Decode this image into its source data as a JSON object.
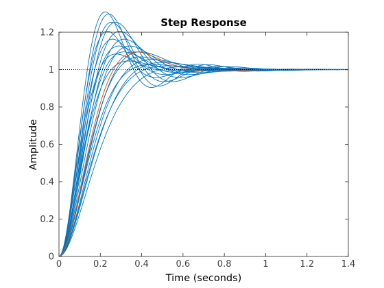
{
  "chart_data": {
    "type": "line",
    "title": "Step Response",
    "xlabel": "Time (seconds)",
    "ylabel": "Amplitude",
    "xlim": [
      0,
      1.4
    ],
    "ylim": [
      0,
      1.2
    ],
    "x_ticks": [
      0,
      0.2,
      0.4,
      0.6,
      0.8,
      1,
      1.2,
      1.4
    ],
    "y_ticks": [
      0,
      0.2,
      0.4,
      0.6,
      0.8,
      1,
      1.2
    ],
    "x_tick_labels": [
      "0",
      "0.2",
      "0.4",
      "0.6",
      "0.8",
      "1",
      "1.2",
      "1.4"
    ],
    "y_tick_labels": [
      "0",
      "0.2",
      "0.4",
      "0.6",
      "0.8",
      "1",
      "1.2"
    ],
    "grid": false,
    "reference_line": {
      "y": 1,
      "style": "dotted",
      "color": "#000000"
    },
    "colors": {
      "family": "#0072bd",
      "nominal": "#d95319",
      "axes": "#262626"
    },
    "nominal_response": {
      "wn": 10.5,
      "zeta": 0.6,
      "final": 1,
      "color": "#d95319"
    },
    "response_family": {
      "color": "#0072bd",
      "final": 1,
      "t_end": 1.4,
      "members": [
        {
          "wn": 15.0,
          "zeta": 0.35
        },
        {
          "wn": 14.0,
          "zeta": 0.36
        },
        {
          "wn": 13.5,
          "zeta": 0.4
        },
        {
          "wn": 15.0,
          "zeta": 0.45
        },
        {
          "wn": 12.5,
          "zeta": 0.4
        },
        {
          "wn": 14.0,
          "zeta": 0.5
        },
        {
          "wn": 13.0,
          "zeta": 0.55
        },
        {
          "wn": 12.0,
          "zeta": 0.45
        },
        {
          "wn": 11.5,
          "zeta": 0.5
        },
        {
          "wn": 12.5,
          "zeta": 0.6
        },
        {
          "wn": 11.0,
          "zeta": 0.55
        },
        {
          "wn": 10.5,
          "zeta": 0.65
        },
        {
          "wn": 10.0,
          "zeta": 0.6
        },
        {
          "wn": 9.5,
          "zeta": 0.68
        },
        {
          "wn": 9.0,
          "zeta": 0.72
        },
        {
          "wn": 10.5,
          "zeta": 0.75
        },
        {
          "wn": 9.5,
          "zeta": 0.78
        },
        {
          "wn": 8.5,
          "zeta": 0.8
        },
        {
          "wn": 13.0,
          "zeta": 0.7
        },
        {
          "wn": 14.5,
          "zeta": 0.62
        }
      ]
    }
  }
}
